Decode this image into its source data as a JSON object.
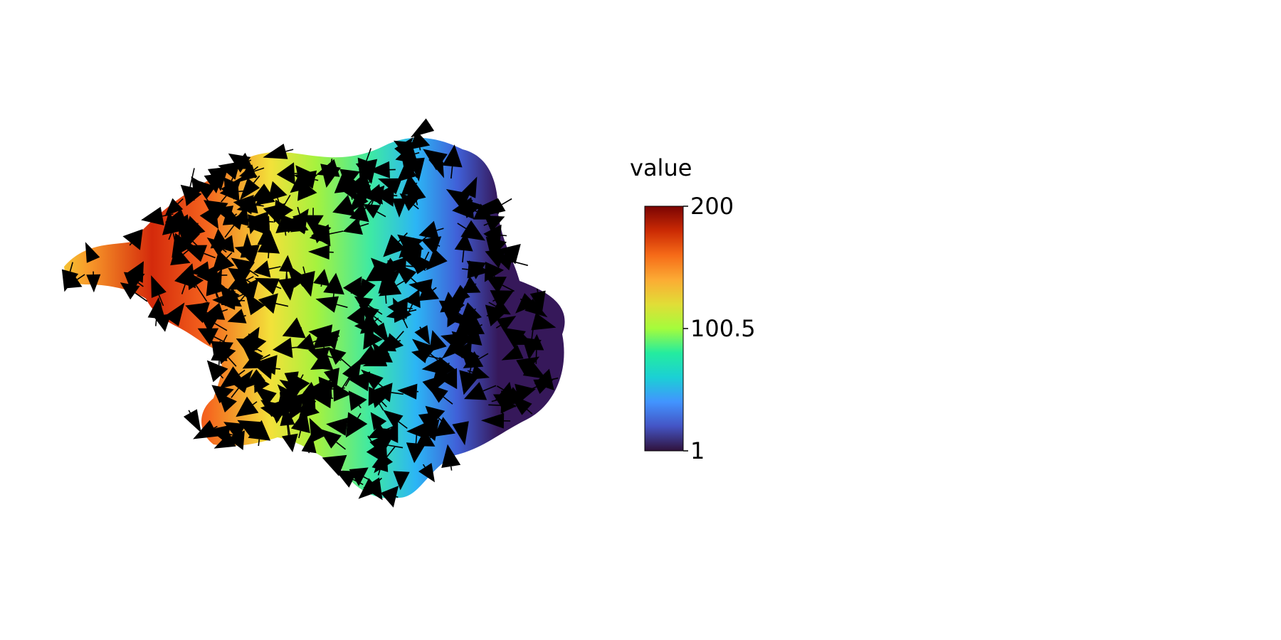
{
  "chart_data": {
    "type": "heatmap",
    "subtype": "spatial-field-with-quiver",
    "title": "",
    "xlabel": "",
    "ylabel": "",
    "axes_visible": false,
    "grid": false,
    "colormap": "turbo",
    "colorbar": {
      "title": "value",
      "min": 1,
      "max": 200,
      "ticks": [
        1,
        100.5,
        200
      ],
      "tick_labels": [
        "1",
        "100.5",
        "200"
      ],
      "placement": "right"
    },
    "field": {
      "description_of_values": "value decreases from the left lobe (about 200) toward the right edge (about 1)",
      "value_left": 200,
      "value_right": 1
    },
    "arrows": {
      "color": "#000000",
      "dominant_direction": "towards increasing value (leftward) with local variation"
    }
  }
}
